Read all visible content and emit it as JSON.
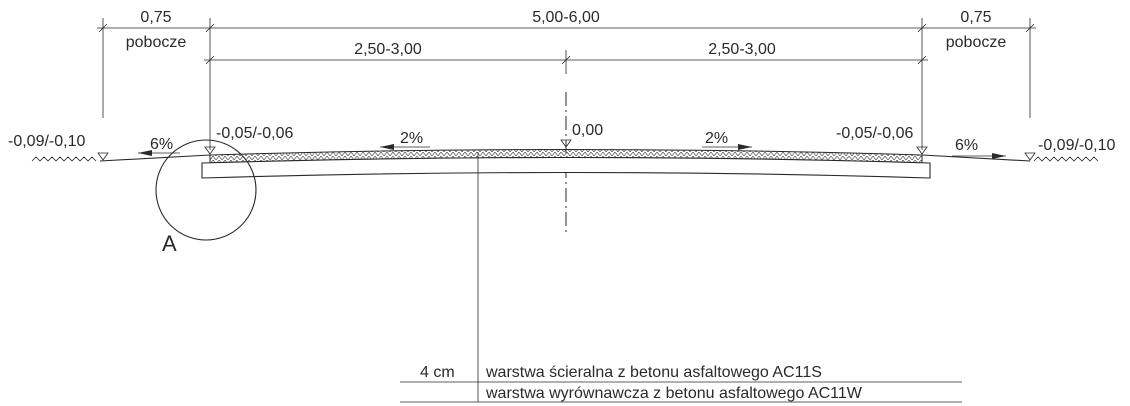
{
  "dimensions": {
    "total_width": "5,00-6,00",
    "half_left": "2,50-3,00",
    "half_right": "2,50-3,00",
    "shoulder_left_width": "0,75",
    "shoulder_left_label": "pobocze",
    "shoulder_right_width": "0,75",
    "shoulder_right_label": "pobocze"
  },
  "elevations": {
    "outer_left": "-0,09/-0,10",
    "edge_left": "-0,05/-0,06",
    "axis": "0,00",
    "edge_right": "-0,05/-0,06",
    "outer_right": "-0,09/-0,10"
  },
  "slopes": {
    "shoulder_left": "6%",
    "lane_left": "2%",
    "lane_right": "2%",
    "shoulder_right": "6%"
  },
  "detail_label": "A",
  "layers": [
    {
      "thickness": "4 cm",
      "description": "warstwa ścieralna z betonu asfaltowego AC11S"
    },
    {
      "thickness": "",
      "description": "warstwa wyrównawcza z betonu asfaltowego AC11W"
    }
  ]
}
